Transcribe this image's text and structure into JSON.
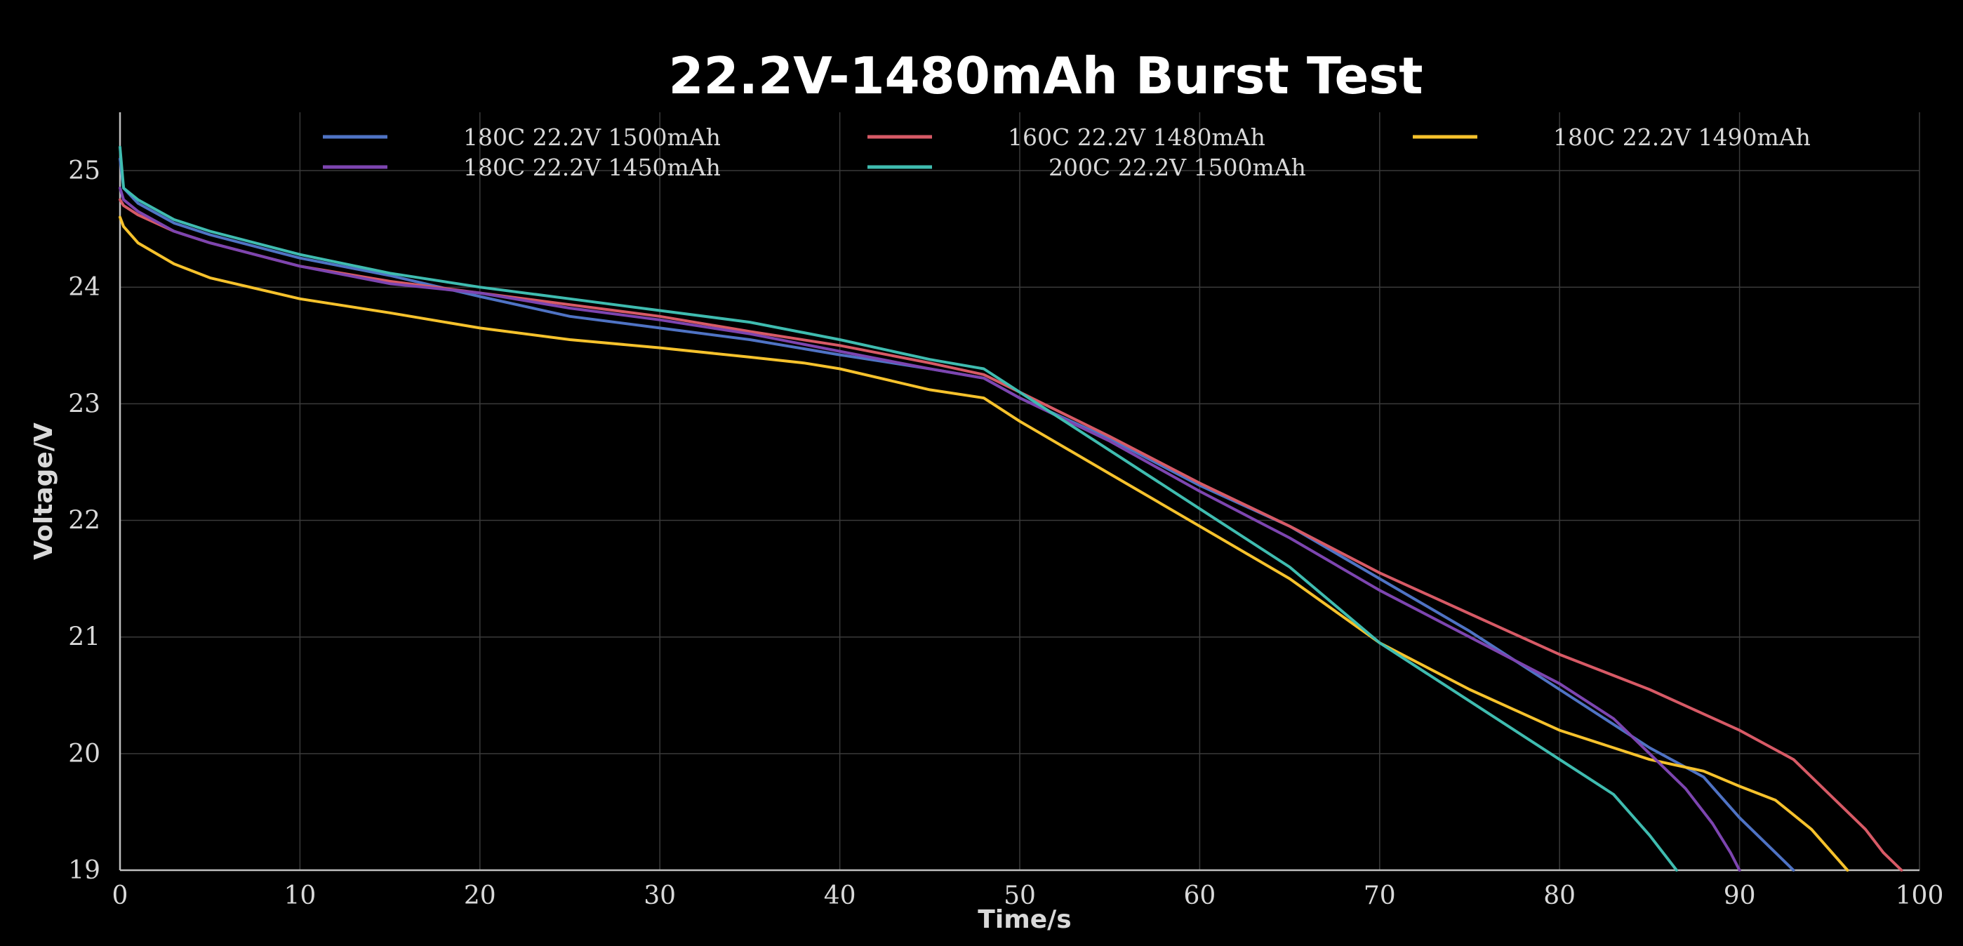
{
  "chart_data": {
    "type": "line",
    "title": "22.2V-1480mAh Burst Test",
    "xlabel": "Time/s",
    "ylabel": "Voltage/V",
    "xlim": [
      0,
      100
    ],
    "ylim": [
      19,
      25.5
    ],
    "x_ticks": [
      0,
      10,
      20,
      30,
      40,
      50,
      60,
      70,
      80,
      90,
      100
    ],
    "y_ticks": [
      19,
      20,
      21,
      22,
      23,
      24,
      25
    ],
    "grid": true,
    "legend_position": "top",
    "series": [
      {
        "name": "180C 22.2V 1500mAh",
        "color": "#4f73c4",
        "points": [
          [
            0,
            25.1
          ],
          [
            0.2,
            24.85
          ],
          [
            1,
            24.72
          ],
          [
            3,
            24.55
          ],
          [
            5,
            24.45
          ],
          [
            10,
            24.25
          ],
          [
            15,
            24.1
          ],
          [
            20,
            23.92
          ],
          [
            25,
            23.75
          ],
          [
            30,
            23.65
          ],
          [
            35,
            23.55
          ],
          [
            40,
            23.42
          ],
          [
            45,
            23.3
          ],
          [
            48,
            23.22
          ],
          [
            50,
            23.05
          ],
          [
            55,
            22.7
          ],
          [
            60,
            22.3
          ],
          [
            65,
            21.95
          ],
          [
            70,
            21.5
          ],
          [
            75,
            21.05
          ],
          [
            80,
            20.55
          ],
          [
            85,
            20.05
          ],
          [
            88,
            19.8
          ],
          [
            90,
            19.45
          ],
          [
            92,
            19.15
          ],
          [
            93,
            19.0
          ]
        ]
      },
      {
        "name": "160C 22.2V 1480mAh",
        "color": "#d75a66",
        "points": [
          [
            0,
            24.75
          ],
          [
            0.2,
            24.7
          ],
          [
            1,
            24.62
          ],
          [
            3,
            24.48
          ],
          [
            5,
            24.38
          ],
          [
            10,
            24.18
          ],
          [
            15,
            24.05
          ],
          [
            20,
            23.95
          ],
          [
            25,
            23.85
          ],
          [
            30,
            23.75
          ],
          [
            35,
            23.62
          ],
          [
            40,
            23.5
          ],
          [
            45,
            23.35
          ],
          [
            48,
            23.25
          ],
          [
            50,
            23.1
          ],
          [
            55,
            22.72
          ],
          [
            60,
            22.32
          ],
          [
            65,
            21.95
          ],
          [
            70,
            21.55
          ],
          [
            75,
            21.2
          ],
          [
            80,
            20.85
          ],
          [
            85,
            20.55
          ],
          [
            90,
            20.2
          ],
          [
            93,
            19.95
          ],
          [
            95,
            19.65
          ],
          [
            97,
            19.35
          ],
          [
            98,
            19.15
          ],
          [
            99,
            19.0
          ]
        ]
      },
      {
        "name": "180C 22.2V 1490mAh",
        "color": "#f6c22c",
        "points": [
          [
            0,
            24.6
          ],
          [
            0.2,
            24.52
          ],
          [
            1,
            24.38
          ],
          [
            3,
            24.2
          ],
          [
            5,
            24.08
          ],
          [
            10,
            23.9
          ],
          [
            15,
            23.78
          ],
          [
            20,
            23.65
          ],
          [
            25,
            23.55
          ],
          [
            30,
            23.48
          ],
          [
            35,
            23.4
          ],
          [
            38,
            23.35
          ],
          [
            40,
            23.3
          ],
          [
            45,
            23.12
          ],
          [
            48,
            23.05
          ],
          [
            50,
            22.85
          ],
          [
            55,
            22.4
          ],
          [
            60,
            21.95
          ],
          [
            65,
            21.5
          ],
          [
            70,
            20.95
          ],
          [
            75,
            20.55
          ],
          [
            80,
            20.2
          ],
          [
            85,
            19.95
          ],
          [
            88,
            19.85
          ],
          [
            90,
            19.72
          ],
          [
            92,
            19.6
          ],
          [
            94,
            19.35
          ],
          [
            96,
            19.0
          ]
        ]
      },
      {
        "name": "180C 22.2V 1450mAh",
        "color": "#7d45b0",
        "points": [
          [
            0,
            24.85
          ],
          [
            0.2,
            24.75
          ],
          [
            1,
            24.65
          ],
          [
            3,
            24.48
          ],
          [
            5,
            24.38
          ],
          [
            10,
            24.18
          ],
          [
            15,
            24.03
          ],
          [
            20,
            23.95
          ],
          [
            25,
            23.82
          ],
          [
            30,
            23.72
          ],
          [
            35,
            23.6
          ],
          [
            40,
            23.45
          ],
          [
            45,
            23.3
          ],
          [
            48,
            23.22
          ],
          [
            50,
            23.05
          ],
          [
            55,
            22.68
          ],
          [
            60,
            22.25
          ],
          [
            65,
            21.85
          ],
          [
            70,
            21.4
          ],
          [
            75,
            21.0
          ],
          [
            80,
            20.6
          ],
          [
            83,
            20.3
          ],
          [
            85,
            20.0
          ],
          [
            87,
            19.7
          ],
          [
            88.5,
            19.4
          ],
          [
            89.5,
            19.15
          ],
          [
            90,
            19.0
          ]
        ]
      },
      {
        "name": "200C 22.2V 1500mAh",
        "color": "#3fbcb0",
        "points": [
          [
            0,
            25.2
          ],
          [
            0.2,
            24.85
          ],
          [
            1,
            24.75
          ],
          [
            3,
            24.58
          ],
          [
            5,
            24.48
          ],
          [
            10,
            24.28
          ],
          [
            15,
            24.12
          ],
          [
            20,
            24.0
          ],
          [
            25,
            23.9
          ],
          [
            30,
            23.8
          ],
          [
            35,
            23.7
          ],
          [
            40,
            23.55
          ],
          [
            45,
            23.38
          ],
          [
            48,
            23.3
          ],
          [
            50,
            23.1
          ],
          [
            55,
            22.6
          ],
          [
            60,
            22.1
          ],
          [
            65,
            21.6
          ],
          [
            70,
            20.95
          ],
          [
            75,
            20.45
          ],
          [
            80,
            19.95
          ],
          [
            83,
            19.65
          ],
          [
            85,
            19.3
          ],
          [
            86.5,
            19.0
          ]
        ]
      }
    ]
  },
  "legend": {
    "row1": [
      "180C 22.2V 1500mAh",
      "160C 22.2V 1480mAh",
      "180C 22.2V 1490mAh"
    ],
    "row2": [
      "180C 22.2V 1450mAh",
      "200C 22.2V 1500mAh"
    ]
  }
}
